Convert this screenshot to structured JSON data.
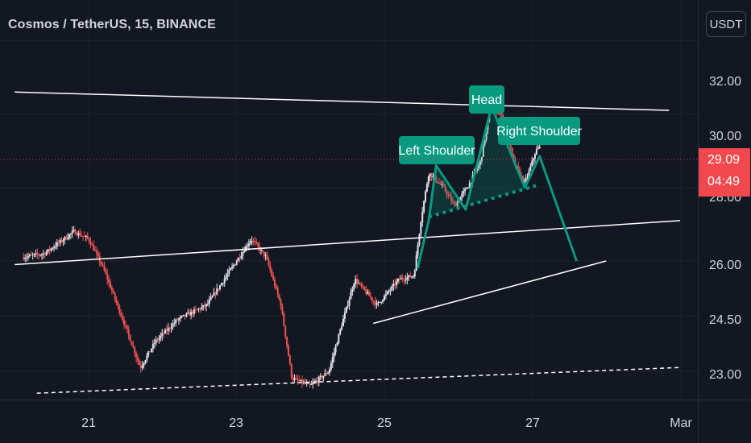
{
  "header": {
    "title": "Cosmos / TetherUS, 15, BINANCE",
    "currency_button": "USDT"
  },
  "price_scale": {
    "ticks": [
      "32.00",
      "30.00",
      "26.00",
      "24.50",
      "23.00"
    ],
    "last_price": "29.09",
    "countdown": "04:49",
    "partial_tick": "28.00"
  },
  "time_scale": {
    "ticks": [
      "21",
      "23",
      "25",
      "27",
      "Mar"
    ]
  },
  "annotations": {
    "left_shoulder": "Left Shoulder",
    "head": "Head",
    "right_shoulder": "Right Shoulder"
  },
  "colors": {
    "background": "#131722",
    "candle_up": "#e0e3eb",
    "candle_down": "#ef5350",
    "pattern": "#089981",
    "label_bg": "#089981",
    "last_price_tag": "#f0484c",
    "price_line": "#f23645"
  },
  "chart_data": {
    "type": "candlestick",
    "symbol": "Cosmos / TetherUS",
    "interval": "15",
    "exchange": "BINANCE",
    "ylim": [
      22.4,
      33.2
    ],
    "last_price": 29.09,
    "price_path": [
      [
        20.1,
        26.1
      ],
      [
        20.4,
        26.2
      ],
      [
        20.8,
        26.8
      ],
      [
        21.0,
        26.6
      ],
      [
        21.2,
        25.8
      ],
      [
        21.5,
        24.2
      ],
      [
        21.7,
        23.1
      ],
      [
        21.9,
        23.8
      ],
      [
        22.2,
        24.4
      ],
      [
        22.6,
        24.8
      ],
      [
        22.9,
        25.7
      ],
      [
        23.2,
        26.6
      ],
      [
        23.4,
        26.1
      ],
      [
        23.6,
        24.8
      ],
      [
        23.75,
        22.8
      ],
      [
        24.0,
        22.6
      ],
      [
        24.25,
        23.0
      ],
      [
        24.4,
        24.1
      ],
      [
        24.6,
        25.5
      ],
      [
        24.9,
        24.8
      ],
      [
        25.2,
        25.5
      ],
      [
        25.4,
        25.6
      ],
      [
        25.5,
        27.2
      ],
      [
        25.6,
        28.4
      ],
      [
        25.8,
        28.0
      ],
      [
        25.95,
        27.5
      ],
      [
        26.15,
        28.1
      ],
      [
        26.3,
        28.7
      ],
      [
        26.45,
        30.3
      ],
      [
        26.6,
        29.9
      ],
      [
        26.75,
        28.7
      ],
      [
        26.9,
        28.1
      ],
      [
        27.05,
        29.0
      ],
      [
        27.1,
        29.09
      ]
    ],
    "trendlines": [
      {
        "name": "upper-resistance",
        "from": [
          20.0,
          30.6
        ],
        "to": [
          28.85,
          30.1
        ]
      },
      {
        "name": "middle-support",
        "from": [
          20.0,
          25.9
        ],
        "to": [
          29.0,
          27.1
        ]
      },
      {
        "name": "rising-support",
        "from": [
          24.85,
          24.3
        ],
        "to": [
          28.0,
          26.0
        ]
      },
      {
        "name": "dashed-trendline",
        "from": [
          20.3,
          22.4
        ],
        "to": [
          29.0,
          23.1
        ]
      }
    ],
    "pattern": {
      "name": "head-and-shoulders",
      "path": [
        [
          25.45,
          25.8
        ],
        [
          25.6,
          27.1
        ],
        [
          25.7,
          28.6
        ],
        [
          26.1,
          27.4
        ],
        [
          26.45,
          30.2
        ],
        [
          26.9,
          28.0
        ],
        [
          27.1,
          28.85
        ],
        [
          27.6,
          26.0
        ]
      ],
      "neckline": [
        [
          25.6,
          27.2
        ],
        [
          27.05,
          28.05
        ]
      ]
    }
  }
}
